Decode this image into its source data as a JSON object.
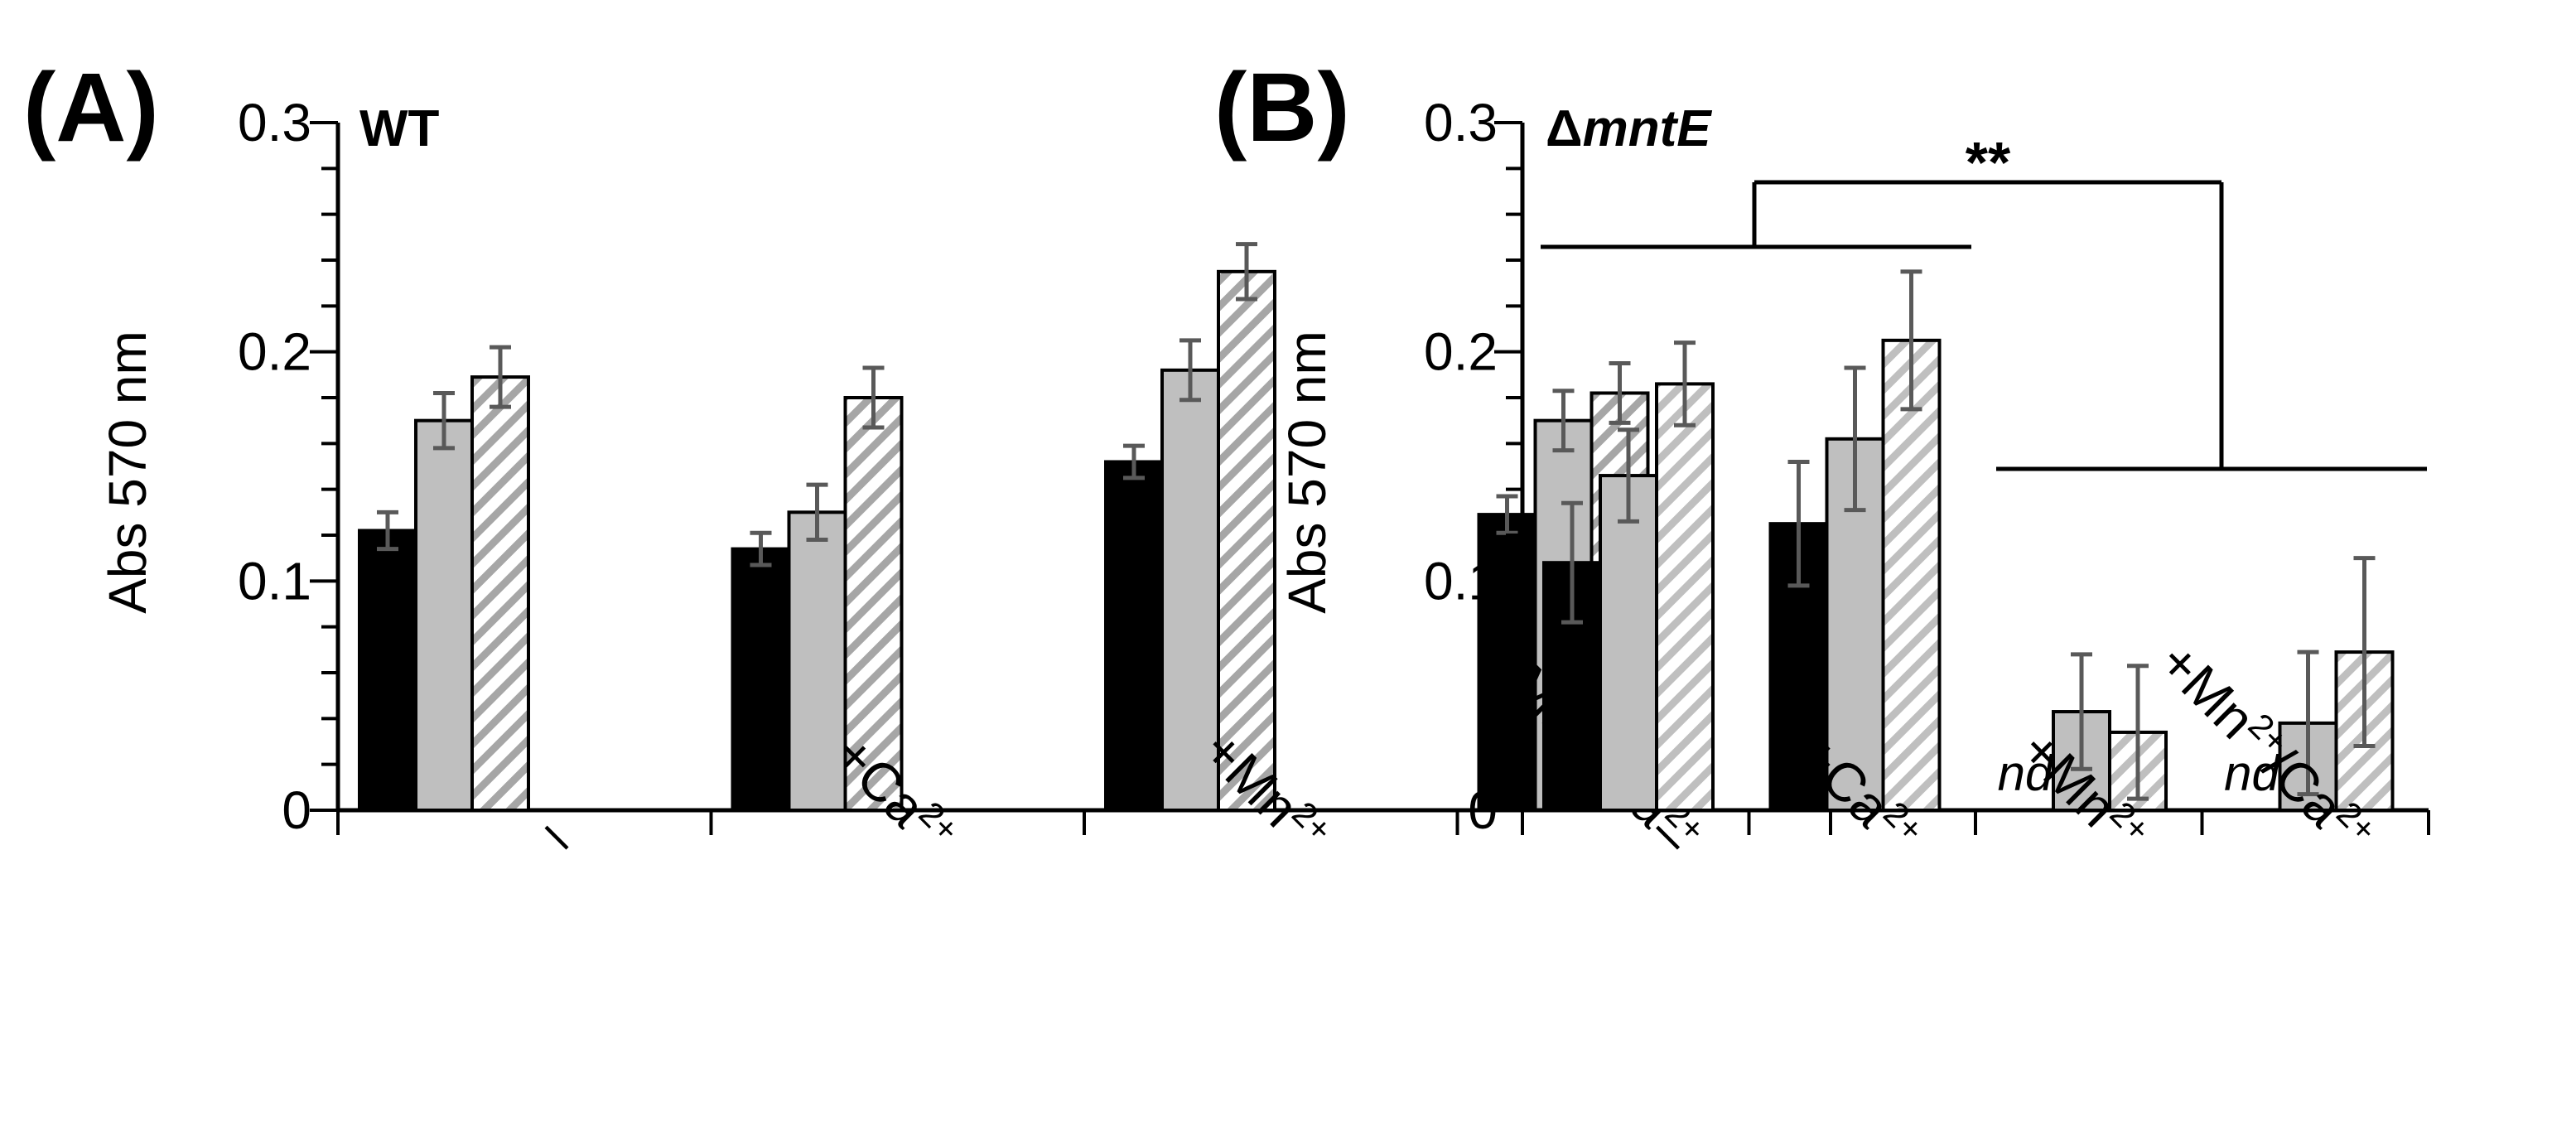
{
  "chart_data": [
    {
      "type": "bar",
      "panel_label": "(A)",
      "title": "WT",
      "ylabel": "Abs 570 nm",
      "xlabel": "",
      "ylim": [
        0,
        0.3
      ],
      "yticks": [
        "0",
        "0.1",
        "0.2",
        "0.3"
      ],
      "categories": [
        {
          "label": "–"
        },
        {
          "label": "+Ca",
          "sup": "2+"
        },
        {
          "label": "+Mn",
          "sup": "2+"
        },
        {
          "label": "+Mn",
          "sup": "2+",
          "label2": "/Ca",
          "sup2": "2+"
        }
      ],
      "series": [
        {
          "name": "black",
          "style": "solid",
          "color": "#000000",
          "values": [
            0.122,
            0.114,
            0.152,
            0.129
          ],
          "errors": [
            0.008,
            0.007,
            0.007,
            0.008
          ]
        },
        {
          "name": "gray",
          "style": "solid",
          "color": "#bfbfbf",
          "values": [
            0.17,
            0.13,
            0.192,
            0.17
          ],
          "errors": [
            0.012,
            0.012,
            0.013,
            0.013
          ]
        },
        {
          "name": "hatched",
          "style": "hatched",
          "color": "#a6a6a6",
          "values": [
            0.189,
            0.18,
            0.235,
            0.182
          ],
          "errors": [
            0.013,
            0.013,
            0.012,
            0.013
          ]
        }
      ]
    },
    {
      "type": "bar",
      "panel_label": "(B)",
      "title_prefix": "Δ",
      "title_italic": "mntE",
      "ylabel": "Abs 570 nm",
      "xlabel": "",
      "ylim": [
        0,
        0.3
      ],
      "yticks": [
        "0",
        "0.1",
        "0.2",
        "0.3"
      ],
      "categories": [
        {
          "label": "–"
        },
        {
          "label": "+Ca",
          "sup": "2+"
        },
        {
          "label": "+Mn",
          "sup": "2+"
        },
        {
          "label": "+Mn",
          "sup": "2+",
          "label2": "/Ca",
          "sup2": "2+"
        }
      ],
      "series": [
        {
          "name": "black",
          "style": "solid",
          "color": "#000000",
          "values": [
            0.108,
            0.125,
            null,
            null
          ],
          "errors": [
            0.026,
            0.027,
            null,
            null
          ]
        },
        {
          "name": "gray",
          "style": "solid",
          "color": "#bfbfbf",
          "values": [
            0.146,
            0.162,
            0.043,
            0.038
          ],
          "errors": [
            0.02,
            0.031,
            0.025,
            0.031
          ]
        },
        {
          "name": "hatched",
          "style": "hatched",
          "color": "#bfbfbf",
          "values": [
            0.186,
            0.205,
            0.034,
            0.069
          ],
          "errors": [
            0.018,
            0.03,
            0.029,
            0.041
          ]
        }
      ],
      "not_detected_label": "nd",
      "significance": {
        "label": "**",
        "groups": [
          [
            "–",
            "+Ca2+"
          ],
          [
            "+Mn2+",
            "+Mn2+/Ca2+"
          ]
        ]
      }
    }
  ]
}
